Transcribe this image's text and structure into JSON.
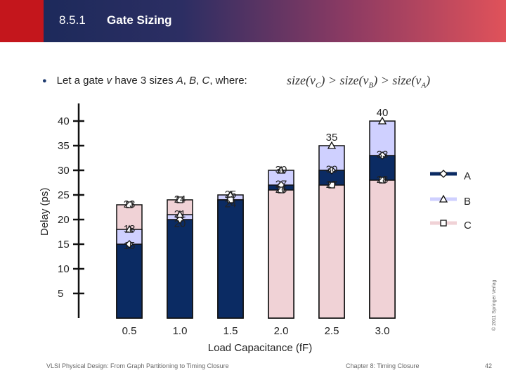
{
  "header": {
    "section_number": "8.5.1",
    "title": "Gate Sizing"
  },
  "bullet": {
    "prefix": "Let a gate ",
    "var_v": "v",
    "middle": " have 3 sizes ",
    "A": "A",
    "sep1": ", ",
    "B": "B",
    "sep2": ", ",
    "C": "C",
    "suffix": ", where:"
  },
  "formula": {
    "size": "size",
    "vC": "v",
    "subC": "C",
    "vB": "v",
    "subB": "B",
    "vA": "v",
    "subA": "A",
    "gt": ">"
  },
  "colors": {
    "A": "#0b2b63",
    "B": "#cfd0ff",
    "C": "#f0d2d6",
    "accent": "#c4161c"
  },
  "chart_data": {
    "type": "bar",
    "xlabel": "Load Capacitance (fF)",
    "ylabel": "Delay (ps)",
    "ylim": [
      0,
      45
    ],
    "yticks": [
      5,
      10,
      15,
      20,
      25,
      30,
      35,
      40
    ],
    "categories": [
      "0.5",
      "1.0",
      "1.5",
      "2.0",
      "2.5",
      "3.0"
    ],
    "series": [
      {
        "name": "A",
        "values": [
          15,
          20,
          24,
          27,
          30,
          33
        ],
        "labels": [
          "15",
          "20",
          "24",
          "27",
          "30",
          "33"
        ],
        "color": "#0b2b63",
        "marker": "diamond"
      },
      {
        "name": "B",
        "values": [
          18,
          21,
          25,
          30,
          35,
          40
        ],
        "labels": [
          "18",
          "21",
          "25",
          "30",
          "35",
          "40"
        ],
        "color": "#cfd0ff",
        "marker": "triangle"
      },
      {
        "name": "C",
        "values": [
          23,
          24,
          24,
          26,
          27,
          28
        ],
        "labels": [
          "23",
          "24",
          "",
          "26",
          "27",
          "28"
        ],
        "color": "#f0d2d6",
        "marker": "square"
      }
    ],
    "legend": {
      "placement": "right",
      "entries": [
        "A",
        "B",
        "C"
      ]
    }
  },
  "footer": {
    "left": "VLSI Physical Design: From Graph Partitioning to Timing Closure",
    "center": "Chapter 8: Timing Closure",
    "page": "42",
    "copyright": "© 2011 Springer Verlag"
  }
}
